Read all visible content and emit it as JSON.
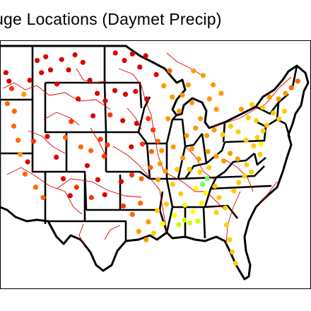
{
  "title": "uge Locations (Daymet Precip)",
  "colors": {
    "state_border": "#000000",
    "river_lines": "#e00000",
    "gauge_high": "#dd0000",
    "gauge_mid_high": "#ff6600",
    "gauge_mid": "#ff9900",
    "gauge_mid_low": "#ffcc00",
    "gauge_low": "#ffff00",
    "gauge_lowest": "#66ff66"
  },
  "gauge_points": [
    {
      "lon": -123.9,
      "lat": 46.5,
      "c": "#dd0000"
    },
    {
      "lon": -123.3,
      "lat": 45.6,
      "c": "#dd0000"
    },
    {
      "lon": -122.8,
      "lat": 44.8,
      "c": "#ff3300"
    },
    {
      "lon": -123.6,
      "lat": 43.2,
      "c": "#ff6600"
    },
    {
      "lon": -122.3,
      "lat": 42.4,
      "c": "#ff6600"
    },
    {
      "lon": -120.5,
      "lat": 44.2,
      "c": "#ff9900"
    },
    {
      "lon": -119.4,
      "lat": 45.7,
      "c": "#dd0000"
    },
    {
      "lon": -118.0,
      "lat": 47.8,
      "c": "#dd0000"
    },
    {
      "lon": -117.2,
      "lat": 46.5,
      "c": "#dd0000"
    },
    {
      "lon": -116.4,
      "lat": 48.2,
      "c": "#dd0000"
    },
    {
      "lon": -115.5,
      "lat": 46.8,
      "c": "#dd0000"
    },
    {
      "lon": -114.3,
      "lat": 45.3,
      "c": "#dd0000"
    },
    {
      "lon": -113.4,
      "lat": 47.9,
      "c": "#dd0000"
    },
    {
      "lon": -112.1,
      "lat": 46.8,
      "c": "#dd0000"
    },
    {
      "lon": -110.9,
      "lat": 48.4,
      "c": "#dd0000"
    },
    {
      "lon": -109.4,
      "lat": 47.6,
      "c": "#dd0000"
    },
    {
      "lon": -108.1,
      "lat": 45.7,
      "c": "#dd0000"
    },
    {
      "lon": -106.7,
      "lat": 44.3,
      "c": "#dd0000"
    },
    {
      "lon": -105.2,
      "lat": 43.5,
      "c": "#dd0000"
    },
    {
      "lon": -104.3,
      "lat": 42.0,
      "c": "#ff3300"
    },
    {
      "lon": -107.5,
      "lat": 41.9,
      "c": "#dd0000"
    },
    {
      "lon": -110.3,
      "lat": 43.7,
      "c": "#dd0000"
    },
    {
      "lon": -111.6,
      "lat": 41.3,
      "c": "#ff3300"
    },
    {
      "lon": -112.7,
      "lat": 39.6,
      "c": "#ff6600"
    },
    {
      "lon": -109.8,
      "lat": 38.6,
      "c": "#ff6600"
    },
    {
      "lon": -107.9,
      "lat": 38.2,
      "c": "#ff6600"
    },
    {
      "lon": -106.1,
      "lat": 39.4,
      "c": "#ff3300"
    },
    {
      "lon": -105.4,
      "lat": 37.6,
      "c": "#ff3300"
    },
    {
      "lon": -104.8,
      "lat": 38.8,
      "c": "#ff3300"
    },
    {
      "lon": -108.6,
      "lat": 36.6,
      "c": "#dd0000"
    },
    {
      "lon": -106.6,
      "lat": 35.1,
      "c": "#dd0000"
    },
    {
      "lon": -105.3,
      "lat": 33.5,
      "c": "#dd0000"
    },
    {
      "lon": -107.8,
      "lat": 33.2,
      "c": "#ff3300"
    },
    {
      "lon": -110.6,
      "lat": 34.3,
      "c": "#ff3300"
    },
    {
      "lon": -111.8,
      "lat": 33.4,
      "c": "#dd0000"
    },
    {
      "lon": -113.1,
      "lat": 35.2,
      "c": "#dd0000"
    },
    {
      "lon": -114.4,
      "lat": 37.5,
      "c": "#dd0000"
    },
    {
      "lon": -116.1,
      "lat": 39.7,
      "c": "#dd0000"
    },
    {
      "lon": -118.7,
      "lat": 39.2,
      "c": "#ff3300"
    },
    {
      "lon": -119.8,
      "lat": 37.0,
      "c": "#dd0000"
    },
    {
      "lon": -121.6,
      "lat": 39.3,
      "c": "#ff6600"
    },
    {
      "lon": -122.4,
      "lat": 40.8,
      "c": "#ff6600"
    },
    {
      "lon": -121.2,
      "lat": 37.8,
      "c": "#ff9900"
    },
    {
      "lon": -120.3,
      "lat": 35.7,
      "c": "#ff6600"
    },
    {
      "lon": -118.3,
      "lat": 34.3,
      "c": "#ff6600"
    },
    {
      "lon": -116.9,
      "lat": 33.2,
      "c": "#ff6600"
    },
    {
      "lon": -103.3,
      "lat": 48.6,
      "c": "#dd0000"
    },
    {
      "lon": -101.6,
      "lat": 47.8,
      "c": "#dd0000"
    },
    {
      "lon": -100.1,
      "lat": 48.5,
      "c": "#dd0000"
    },
    {
      "lon": -98.7,
      "lat": 47.1,
      "c": "#dd0000"
    },
    {
      "lon": -97.6,
      "lat": 48.3,
      "c": "#dd0000"
    },
    {
      "lon": -103.4,
      "lat": 44.6,
      "c": "#dd0000"
    },
    {
      "lon": -101.4,
      "lat": 44.2,
      "c": "#dd0000"
    },
    {
      "lon": -99.5,
      "lat": 44.5,
      "c": "#dd0000"
    },
    {
      "lon": -97.4,
      "lat": 43.7,
      "c": "#dd0000"
    },
    {
      "lon": -101.9,
      "lat": 41.4,
      "c": "#dd0000"
    },
    {
      "lon": -99.3,
      "lat": 41.1,
      "c": "#dd0000"
    },
    {
      "lon": -97.1,
      "lat": 41.6,
      "c": "#ff3300"
    },
    {
      "lon": -96.2,
      "lat": 40.4,
      "c": "#ff3300"
    },
    {
      "lon": -100.3,
      "lat": 38.6,
      "c": "#dd0000"
    },
    {
      "lon": -98.2,
      "lat": 38.9,
      "c": "#ff3300"
    },
    {
      "lon": -96.5,
      "lat": 38.1,
      "c": "#ff6600"
    },
    {
      "lon": -95.3,
      "lat": 39.2,
      "c": "#ff6600"
    },
    {
      "lon": -102.2,
      "lat": 34.9,
      "c": "#dd0000"
    },
    {
      "lon": -100.2,
      "lat": 35.6,
      "c": "#ff3300"
    },
    {
      "lon": -98.4,
      "lat": 35.2,
      "c": "#ff6600"
    },
    {
      "lon": -96.7,
      "lat": 36.4,
      "c": "#ff6600"
    },
    {
      "lon": -95.3,
      "lat": 35.1,
      "c": "#ff9900"
    },
    {
      "lon": -94.9,
      "lat": 36.8,
      "c": "#ff9900"
    },
    {
      "lon": -101.8,
      "lat": 32.3,
      "c": "#ff3300"
    },
    {
      "lon": -100.1,
      "lat": 31.4,
      "c": "#ff6600"
    },
    {
      "lon": -98.6,
      "lat": 32.6,
      "c": "#ff6600"
    },
    {
      "lon": -97.1,
      "lat": 30.6,
      "c": "#ff9900"
    },
    {
      "lon": -98.9,
      "lat": 29.6,
      "c": "#ff9900"
    },
    {
      "lon": -97.5,
      "lat": 28.7,
      "c": "#ff9900"
    },
    {
      "lon": -96.1,
      "lat": 29.4,
      "c": "#ffcc00"
    },
    {
      "lon": -95.4,
      "lat": 31.8,
      "c": "#ffcc00"
    },
    {
      "lon": -94.4,
      "lat": 30.4,
      "c": "#ffff00"
    },
    {
      "lon": -93.7,
      "lat": 32.5,
      "c": "#ffcc00"
    },
    {
      "lon": -92.2,
      "lat": 31.3,
      "c": "#ffff00"
    },
    {
      "lon": -91.4,
      "lat": 30.3,
      "c": "#ccff00"
    },
    {
      "lon": -90.3,
      "lat": 30.8,
      "c": "#ccff00"
    },
    {
      "lon": -89.3,
      "lat": 30.5,
      "c": "#ccff00"
    },
    {
      "lon": -88.7,
      "lat": 31.7,
      "c": "#ffff00"
    },
    {
      "lon": -90.2,
      "lat": 32.4,
      "c": "#ffff00"
    },
    {
      "lon": -91.0,
      "lat": 33.6,
      "c": "#ffcc00"
    },
    {
      "lon": -92.5,
      "lat": 34.6,
      "c": "#ffcc00"
    },
    {
      "lon": -93.9,
      "lat": 36.0,
      "c": "#ff9900"
    },
    {
      "lon": -91.7,
      "lat": 36.2,
      "c": "#ffcc00"
    },
    {
      "lon": -87.8,
      "lat": 30.7,
      "c": "#ccff00"
    },
    {
      "lon": -87.1,
      "lat": 32.6,
      "c": "#ffff00"
    },
    {
      "lon": -86.3,
      "lat": 33.7,
      "c": "#ffff00"
    },
    {
      "lon": -86.9,
      "lat": 34.6,
      "c": "#66ff66"
    },
    {
      "lon": -86.0,
      "lat": 35.2,
      "c": "#66ff66"
    },
    {
      "lon": -87.4,
      "lat": 35.9,
      "c": "#ffcc00"
    },
    {
      "lon": -85.7,
      "lat": 36.4,
      "c": "#ffcc00"
    },
    {
      "lon": -84.6,
      "lat": 34.4,
      "c": "#ffcc00"
    },
    {
      "lon": -83.8,
      "lat": 33.2,
      "c": "#ffcc00"
    },
    {
      "lon": -84.3,
      "lat": 31.6,
      "c": "#ffcc00"
    },
    {
      "lon": -82.6,
      "lat": 32.1,
      "c": "#ffcc00"
    },
    {
      "lon": -82.4,
      "lat": 30.3,
      "c": "#ffcc00"
    },
    {
      "lon": -81.8,
      "lat": 28.7,
      "c": "#ffcc00"
    },
    {
      "lon": -81.3,
      "lat": 27.4,
      "c": "#ffcc00"
    },
    {
      "lon": -80.7,
      "lat": 26.2,
      "c": "#ffcc00"
    },
    {
      "lon": -81.0,
      "lat": 33.9,
      "c": "#ffcc00"
    },
    {
      "lon": -80.1,
      "lat": 34.8,
      "c": "#ffcc00"
    },
    {
      "lon": -79.0,
      "lat": 35.5,
      "c": "#ffcc00"
    },
    {
      "lon": -77.7,
      "lat": 35.9,
      "c": "#ffcc00"
    },
    {
      "lon": -78.6,
      "lat": 36.7,
      "c": "#ffcc00"
    },
    {
      "lon": -80.3,
      "lat": 37.3,
      "c": "#ff9900"
    },
    {
      "lon": -81.7,
      "lat": 37.9,
      "c": "#ff9900"
    },
    {
      "lon": -82.9,
      "lat": 37.1,
      "c": "#ff9900"
    },
    {
      "lon": -84.3,
      "lat": 37.6,
      "c": "#ff9900"
    },
    {
      "lon": -85.9,
      "lat": 38.1,
      "c": "#ff9900"
    },
    {
      "lon": -87.6,
      "lat": 37.3,
      "c": "#ff9900"
    },
    {
      "lon": -88.9,
      "lat": 38.4,
      "c": "#ff9900"
    },
    {
      "lon": -89.9,
      "lat": 39.8,
      "c": "#ff9900"
    },
    {
      "lon": -88.2,
      "lat": 40.6,
      "c": "#ff9900"
    },
    {
      "lon": -87.3,
      "lat": 41.6,
      "c": "#ff9900"
    },
    {
      "lon": -86.1,
      "lat": 39.8,
      "c": "#ff9900"
    },
    {
      "lon": -84.7,
      "lat": 40.4,
      "c": "#ff9900"
    },
    {
      "lon": -83.1,
      "lat": 39.9,
      "c": "#ffcc00"
    },
    {
      "lon": -81.6,
      "lat": 40.8,
      "c": "#ffcc00"
    },
    {
      "lon": -80.2,
      "lat": 40.2,
      "c": "#ffcc00"
    },
    {
      "lon": -78.7,
      "lat": 39.3,
      "c": "#ffcc00"
    },
    {
      "lon": -77.3,
      "lat": 38.7,
      "c": "#ffcc00"
    },
    {
      "lon": -76.6,
      "lat": 39.6,
      "c": "#ffcc00"
    },
    {
      "lon": -75.5,
      "lat": 40.3,
      "c": "#ffcc00"
    },
    {
      "lon": -76.8,
      "lat": 41.4,
      "c": "#ffcc00"
    },
    {
      "lon": -78.3,
      "lat": 41.7,
      "c": "#ffcc00"
    },
    {
      "lon": -79.6,
      "lat": 42.6,
      "c": "#ff9900"
    },
    {
      "lon": -77.6,
      "lat": 43.1,
      "c": "#ffcc00"
    },
    {
      "lon": -75.6,
      "lat": 42.8,
      "c": "#ffcc00"
    },
    {
      "lon": -74.3,
      "lat": 43.9,
      "c": "#ff9900"
    },
    {
      "lon": -73.6,
      "lat": 42.2,
      "c": "#ffcc00"
    },
    {
      "lon": -72.5,
      "lat": 41.6,
      "c": "#ffcc00"
    },
    {
      "lon": -71.5,
      "lat": 42.4,
      "c": "#ffcc00"
    },
    {
      "lon": -72.6,
      "lat": 43.7,
      "c": "#ff9900"
    },
    {
      "lon": -71.3,
      "lat": 44.3,
      "c": "#ff9900"
    },
    {
      "lon": -70.2,
      "lat": 44.9,
      "c": "#ff6600"
    },
    {
      "lon": -69.0,
      "lat": 45.6,
      "c": "#ff6600"
    },
    {
      "lon": -74.8,
      "lat": 40.9,
      "c": "#ffcc00"
    },
    {
      "lon": -76.1,
      "lat": 37.8,
      "c": "#ffcc00"
    },
    {
      "lon": -75.9,
      "lat": 38.9,
      "c": "#ffff00"
    },
    {
      "lon": -84.3,
      "lat": 42.6,
      "c": "#ff9900"
    },
    {
      "lon": -85.6,
      "lat": 43.7,
      "c": "#ff9900"
    },
    {
      "lon": -84.9,
      "lat": 45.2,
      "c": "#ff9900"
    },
    {
      "lon": -83.4,
      "lat": 44.3,
      "c": "#ff9900"
    },
    {
      "lon": -86.8,
      "lat": 46.2,
      "c": "#ff9900"
    },
    {
      "lon": -88.6,
      "lat": 46.7,
      "c": "#ff9900"
    },
    {
      "lon": -89.6,
      "lat": 45.2,
      "c": "#ff9900"
    },
    {
      "lon": -90.7,
      "lat": 44.1,
      "c": "#ff9900"
    },
    {
      "lon": -88.9,
      "lat": 43.3,
      "c": "#ff9900"
    },
    {
      "lon": -91.3,
      "lat": 42.4,
      "c": "#ff9900"
    },
    {
      "lon": -93.4,
      "lat": 41.6,
      "c": "#ff9900"
    },
    {
      "lon": -92.6,
      "lat": 43.9,
      "c": "#ff9900"
    },
    {
      "lon": -94.2,
      "lat": 45.1,
      "c": "#ff9900"
    },
    {
      "lon": -93.1,
      "lat": 46.7,
      "c": "#ff6600"
    },
    {
      "lon": -95.6,
      "lat": 46.3,
      "c": "#dd0000"
    },
    {
      "lon": -94.6,
      "lat": 38.2,
      "c": "#ff9900"
    },
    {
      "lon": -92.4,
      "lat": 38.6,
      "c": "#ff9900"
    },
    {
      "lon": -90.6,
      "lat": 37.4,
      "c": "#ff9900"
    },
    {
      "lon": -89.4,
      "lat": 36.2,
      "c": "#ffcc00"
    },
    {
      "lon": -88.1,
      "lat": 34.2,
      "c": "#ffff00"
    }
  ]
}
